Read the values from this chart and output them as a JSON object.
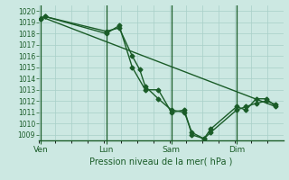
{
  "xlabel": "Pression niveau de la mer( hPa )",
  "bg_color": "#cce8e2",
  "grid_color": "#a8cfc8",
  "line_color": "#1a5c28",
  "vline_color": "#1a5c28",
  "ylim": [
    1008.5,
    1020.5
  ],
  "yticks": [
    1009,
    1010,
    1011,
    1012,
    1013,
    1014,
    1015,
    1016,
    1017,
    1018,
    1019,
    1020
  ],
  "vlines_x": [
    0.0,
    3.5,
    7.0,
    10.5
  ],
  "vline_labels": [
    "Ven",
    "Lun",
    "Sam",
    "Dim"
  ],
  "line1_x": [
    0.0,
    0.25,
    3.5,
    4.2,
    4.9,
    5.6,
    6.3,
    7.0,
    7.7,
    8.1,
    8.75,
    9.1,
    10.5,
    11.0,
    11.55,
    12.1,
    12.6
  ],
  "line1_y": [
    1019.3,
    1019.5,
    1018.0,
    1018.7,
    1015.0,
    1013.0,
    1013.0,
    1011.0,
    1011.2,
    1009.0,
    1008.65,
    1009.2,
    1011.2,
    1011.5,
    1011.8,
    1012.0,
    1011.7
  ],
  "line2_x": [
    0.0,
    0.25,
    3.5,
    4.2,
    4.9,
    5.3,
    5.6,
    6.3,
    7.0,
    7.7,
    8.1,
    8.75,
    9.1,
    10.5,
    11.0,
    11.55,
    12.1,
    12.6
  ],
  "line2_y": [
    1019.3,
    1019.5,
    1018.2,
    1018.5,
    1016.0,
    1014.8,
    1013.3,
    1012.2,
    1011.2,
    1011.0,
    1009.2,
    1008.65,
    1009.5,
    1011.5,
    1011.2,
    1012.2,
    1012.2,
    1011.5
  ],
  "trend_x": [
    0.0,
    12.6
  ],
  "trend_y": [
    1019.5,
    1011.5
  ],
  "xmin": -0.1,
  "xmax": 13.0,
  "xtick_positions": [
    0.0,
    3.5,
    7.0,
    10.5
  ],
  "xtick_labels": [
    "Ven",
    "Lun",
    "Sam",
    "Dim"
  ]
}
